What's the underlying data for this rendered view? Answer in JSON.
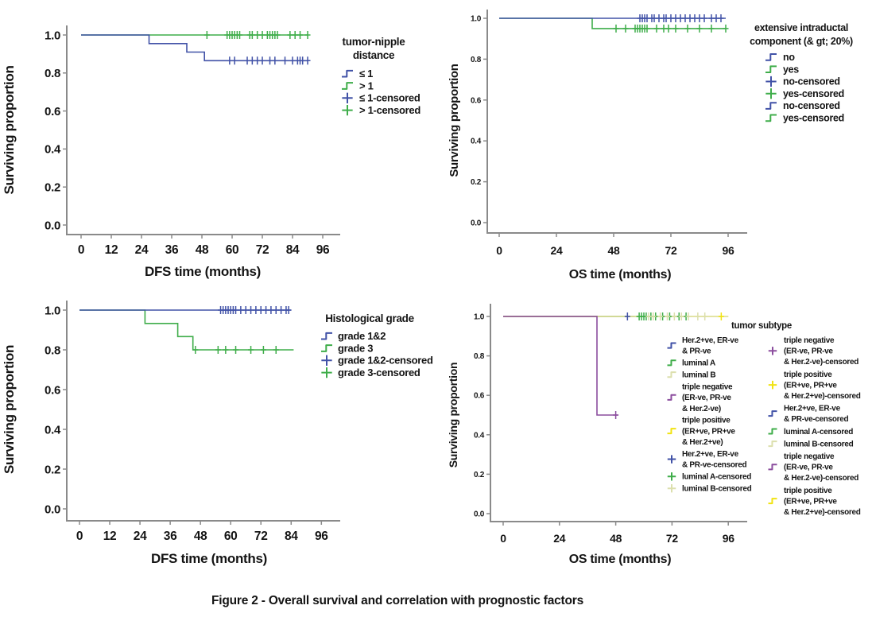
{
  "caption": "Figure 2 - Overall survival and correlation with prognostic factors",
  "palette": {
    "blue": "#4152A7",
    "green": "#3FAD4A",
    "pale": "#DCDFAD",
    "purple": "#8B4D9E",
    "yellow": "#F1E312",
    "axis": "#8A8A8A",
    "text": "#141414"
  },
  "chart_data": [
    {
      "type": "line",
      "subtype": "kaplan-meier-step",
      "xlabel": "DFS time (months)",
      "ylabel": "Surviving proportion",
      "xticks": [
        0,
        12,
        24,
        36,
        48,
        60,
        72,
        84,
        96
      ],
      "ytick_labels": [
        "0.0",
        "0.2",
        "0.4",
        "0.6",
        "0.8",
        "1.0"
      ],
      "xlim": [
        0,
        104
      ],
      "ylim": [
        0,
        1
      ],
      "legend_title_lines": [
        "tumor-nipple",
        "distance"
      ],
      "legend": [
        {
          "symbol": "step",
          "color": "blue",
          "lines": [
            "≤ 1"
          ]
        },
        {
          "symbol": "step",
          "color": "green",
          "lines": [
            "> 1"
          ]
        },
        {
          "symbol": "plus",
          "color": "blue",
          "lines": [
            "≤ 1-censored"
          ]
        },
        {
          "symbol": "plus",
          "color": "green",
          "lines": [
            "> 1-censored"
          ]
        }
      ],
      "series": [
        {
          "name": "> 1",
          "color": "green",
          "steps": [
            [
              0,
              1
            ],
            [
              90,
              1
            ]
          ],
          "censored": [
            [
              50,
              1
            ],
            [
              58,
              1
            ],
            [
              59,
              1
            ],
            [
              60,
              1
            ],
            [
              61,
              1
            ],
            [
              62,
              1
            ],
            [
              63,
              1
            ],
            [
              67,
              1
            ],
            [
              68,
              1
            ],
            [
              70,
              1
            ],
            [
              72,
              1
            ],
            [
              74,
              1
            ],
            [
              75,
              1
            ],
            [
              76,
              1
            ],
            [
              77,
              1
            ],
            [
              78,
              1
            ],
            [
              83,
              1
            ],
            [
              85,
              1
            ],
            [
              87,
              1
            ],
            [
              90,
              1
            ]
          ]
        },
        {
          "name": "≤ 1",
          "color": "blue",
          "steps": [
            [
              0,
              1
            ],
            [
              27,
              1
            ],
            [
              27,
              0.955
            ],
            [
              42,
              0.955
            ],
            [
              42,
              0.91
            ],
            [
              49,
              0.91
            ],
            [
              49,
              0.865
            ],
            [
              90,
              0.865
            ]
          ],
          "censored": [
            [
              59,
              0.865
            ],
            [
              61,
              0.865
            ],
            [
              66,
              0.865
            ],
            [
              68,
              0.865
            ],
            [
              70,
              0.865
            ],
            [
              72,
              0.865
            ],
            [
              75,
              0.865
            ],
            [
              77,
              0.865
            ],
            [
              81,
              0.865
            ],
            [
              84,
              0.865
            ],
            [
              86,
              0.865
            ],
            [
              87,
              0.865
            ],
            [
              88,
              0.865
            ],
            [
              90,
              0.865
            ]
          ]
        }
      ]
    },
    {
      "type": "line",
      "subtype": "kaplan-meier-step",
      "xlabel": "OS time (months)",
      "ylabel": "Surviving proportion",
      "xticks": [
        0,
        24,
        48,
        72,
        96
      ],
      "ytick_labels": [
        "0.0",
        "0.2",
        "0.4",
        "0.6",
        "0.8",
        "1.0"
      ],
      "xlim": [
        0,
        104
      ],
      "ylim": [
        0,
        1
      ],
      "legend_title_lines": [
        "extensive intraductal",
        "component (& gt; 20%)"
      ],
      "legend": [
        {
          "symbol": "step",
          "color": "blue",
          "lines": [
            "no"
          ]
        },
        {
          "symbol": "step",
          "color": "green",
          "lines": [
            "yes"
          ]
        },
        {
          "symbol": "plus",
          "color": "blue",
          "lines": [
            "no-censored"
          ]
        },
        {
          "symbol": "plus",
          "color": "green",
          "lines": [
            "yes-censored"
          ]
        },
        {
          "symbol": "step",
          "color": "blue",
          "lines": [
            "no-censored"
          ]
        },
        {
          "symbol": "step",
          "color": "green",
          "lines": [
            "yes-censored"
          ]
        }
      ],
      "series": [
        {
          "name": "yes",
          "color": "green",
          "steps": [
            [
              0,
              1
            ],
            [
              39,
              1
            ],
            [
              39,
              0.95
            ],
            [
              95,
              0.95
            ]
          ],
          "censored": [
            [
              49,
              0.95
            ],
            [
              53,
              0.95
            ],
            [
              57,
              0.95
            ],
            [
              58,
              0.95
            ],
            [
              59,
              0.95
            ],
            [
              60,
              0.95
            ],
            [
              61,
              0.95
            ],
            [
              62,
              0.95
            ],
            [
              66,
              0.95
            ],
            [
              69,
              0.95
            ],
            [
              71,
              0.95
            ],
            [
              74,
              0.95
            ],
            [
              79,
              0.95
            ],
            [
              84,
              0.95
            ],
            [
              89,
              0.95
            ],
            [
              95,
              0.95
            ]
          ]
        },
        {
          "name": "no",
          "color": "blue",
          "steps": [
            [
              0,
              1
            ],
            [
              95,
              1
            ]
          ],
          "censored": [
            [
              59,
              1
            ],
            [
              60,
              1
            ],
            [
              61,
              1
            ],
            [
              62,
              1
            ],
            [
              64,
              1
            ],
            [
              65,
              1
            ],
            [
              67,
              1
            ],
            [
              69,
              1
            ],
            [
              70,
              1
            ],
            [
              72,
              1
            ],
            [
              74,
              1
            ],
            [
              76,
              1
            ],
            [
              78,
              1
            ],
            [
              80,
              1
            ],
            [
              82,
              1
            ],
            [
              84,
              1
            ],
            [
              86,
              1
            ],
            [
              89,
              1
            ],
            [
              91,
              1
            ],
            [
              93,
              1
            ]
          ]
        }
      ]
    },
    {
      "type": "line",
      "subtype": "kaplan-meier-step",
      "xlabel": "DFS time (months)",
      "ylabel": "Surviving proportion",
      "xticks": [
        0,
        12,
        24,
        36,
        48,
        60,
        72,
        84,
        96
      ],
      "ytick_labels": [
        "0.0",
        "0.2",
        "0.4",
        "0.6",
        "0.8",
        "1.0"
      ],
      "xlim": [
        0,
        104
      ],
      "ylim": [
        0,
        1
      ],
      "legend_title_lines": [
        "Histological grade"
      ],
      "legend": [
        {
          "symbol": "step",
          "color": "blue",
          "lines": [
            "grade 1&2"
          ]
        },
        {
          "symbol": "step",
          "color": "green",
          "lines": [
            "grade 3"
          ]
        },
        {
          "symbol": "plus",
          "color": "blue",
          "lines": [
            "grade 1&2-censored"
          ]
        },
        {
          "symbol": "plus",
          "color": "green",
          "lines": [
            "grade 3-censored"
          ]
        }
      ],
      "series": [
        {
          "name": "grade 3",
          "color": "green",
          "steps": [
            [
              0,
              1
            ],
            [
              26,
              1
            ],
            [
              26,
              0.933
            ],
            [
              39,
              0.933
            ],
            [
              39,
              0.867
            ],
            [
              45,
              0.867
            ],
            [
              45,
              0.8
            ],
            [
              85,
              0.8
            ]
          ],
          "censored": [
            [
              46,
              0.8
            ],
            [
              55,
              0.8
            ],
            [
              58,
              0.8
            ],
            [
              62,
              0.8
            ],
            [
              68,
              0.8
            ],
            [
              73,
              0.8
            ],
            [
              78,
              0.8
            ]
          ]
        },
        {
          "name": "grade 1&2",
          "color": "blue",
          "steps": [
            [
              0,
              1
            ],
            [
              84,
              1
            ]
          ],
          "censored": [
            [
              56,
              1
            ],
            [
              57,
              1
            ],
            [
              58,
              1
            ],
            [
              59,
              1
            ],
            [
              60,
              1
            ],
            [
              61,
              1
            ],
            [
              62,
              1
            ],
            [
              64,
              1
            ],
            [
              66,
              1
            ],
            [
              68,
              1
            ],
            [
              70,
              1
            ],
            [
              72,
              1
            ],
            [
              74,
              1
            ],
            [
              76,
              1
            ],
            [
              78,
              1
            ],
            [
              80,
              1
            ],
            [
              82,
              1
            ],
            [
              83,
              1
            ]
          ]
        }
      ]
    },
    {
      "type": "line",
      "subtype": "kaplan-meier-step",
      "xlabel": "OS time (months)",
      "ylabel": "Surviving proportion",
      "xticks": [
        0,
        24,
        48,
        72,
        96
      ],
      "ytick_labels": [
        "0.0",
        "0.2",
        "0.4",
        "0.6",
        "0.8",
        "1.0"
      ],
      "xlim": [
        0,
        104
      ],
      "ylim": [
        0,
        1
      ],
      "legend_title_lines": [
        "tumor subtype"
      ],
      "legend": [
        {
          "symbol": "step",
          "color": "blue",
          "lines": [
            "Her.2+ve, ER-ve",
            "& PR-ve"
          ]
        },
        {
          "symbol": "step",
          "color": "green",
          "lines": [
            "luminal A"
          ]
        },
        {
          "symbol": "step",
          "color": "pale",
          "lines": [
            "luminal B"
          ]
        },
        {
          "symbol": "step",
          "color": "purple",
          "lines": [
            "triple negative",
            "(ER-ve, PR-ve",
            "& Her.2-ve)"
          ]
        },
        {
          "symbol": "step",
          "color": "yellow",
          "lines": [
            "triple positive",
            "(ER+ve, PR+ve",
            "& Her.2+ve)"
          ]
        },
        {
          "symbol": "plus",
          "color": "blue",
          "lines": [
            "Her.2+ve, ER-ve",
            "& PR-ve-censored"
          ]
        },
        {
          "symbol": "plus",
          "color": "green",
          "lines": [
            "luminal A-censored"
          ]
        },
        {
          "symbol": "plus",
          "color": "pale",
          "lines": [
            "luminal B-censored"
          ]
        }
      ],
      "legend2": [
        {
          "symbol": "plus",
          "color": "purple",
          "lines": [
            "triple negative",
            "(ER-ve, PR-ve",
            "& Her.2-ve)-censored"
          ]
        },
        {
          "symbol": "plus",
          "color": "yellow",
          "lines": [
            "triple positive",
            "(ER+ve, PR+ve",
            "& Her.2+ve)-censored"
          ]
        },
        {
          "symbol": "step",
          "color": "blue",
          "lines": [
            "Her.2+ve, ER-ve",
            "& PR-ve-censored"
          ]
        },
        {
          "symbol": "step",
          "color": "green",
          "lines": [
            "luminal A-censored"
          ]
        },
        {
          "symbol": "step",
          "color": "pale",
          "lines": [
            "luminal B-censored"
          ]
        },
        {
          "symbol": "step",
          "color": "purple",
          "lines": [
            "triple negative",
            "(ER-ve, PR-ve",
            "& Her.2-ve)-censored"
          ]
        },
        {
          "symbol": "step",
          "color": "yellow",
          "lines": [
            "triple positive",
            "(ER+ve, PR+ve",
            "& Her.2+ve)-censored"
          ]
        }
      ],
      "series": [
        {
          "name": "Her.2+ve, ER-ve & PR-ve",
          "color": "blue",
          "steps": [
            [
              0,
              1
            ],
            [
              56,
              1
            ]
          ],
          "censored": [
            [
              53,
              1
            ]
          ]
        },
        {
          "name": "luminal A",
          "color": "green",
          "steps": [
            [
              0,
              1
            ],
            [
              79,
              1
            ]
          ],
          "censored": [
            [
              58,
              1
            ],
            [
              59,
              1
            ],
            [
              60,
              1
            ],
            [
              61,
              1
            ],
            [
              63,
              1
            ],
            [
              65,
              1
            ],
            [
              68,
              1
            ],
            [
              71,
              1
            ],
            [
              75,
              1
            ],
            [
              78,
              1
            ]
          ]
        },
        {
          "name": "triple positive (ER+ve, PR+ve & Her.2+ve)",
          "color": "yellow",
          "steps": [
            [
              0,
              1
            ],
            [
              96,
              1
            ]
          ],
          "censored": [
            [
              93,
              1
            ]
          ]
        },
        {
          "name": "luminal B",
          "color": "pale",
          "steps": [
            [
              0,
              1
            ],
            [
              96,
              1
            ]
          ],
          "censored": [
            [
              62,
              1
            ],
            [
              64,
              1
            ],
            [
              67,
              1
            ],
            [
              70,
              1
            ],
            [
              73,
              1
            ],
            [
              76,
              1
            ],
            [
              79,
              1
            ],
            [
              83,
              1
            ],
            [
              86,
              1
            ]
          ]
        },
        {
          "name": "triple negative (ER-ve, PR-ve & Her.2-ve)",
          "color": "purple",
          "steps": [
            [
              0,
              1
            ],
            [
              40,
              1
            ],
            [
              40,
              0.5
            ],
            [
              49,
              0.5
            ]
          ],
          "censored": [
            [
              48,
              0.5
            ]
          ]
        }
      ]
    }
  ]
}
